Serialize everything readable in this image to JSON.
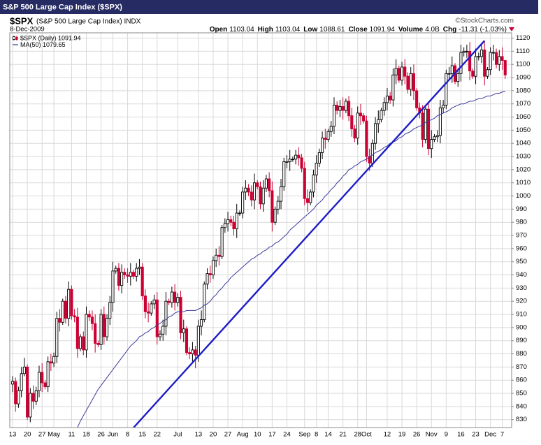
{
  "chart_data": {
    "type": "candlestick",
    "title": "S&P 500 Large Cap Index ($SPX)",
    "symbol": "$SPX",
    "subtitle": "(S&P 500 Large Cap Index) INDX",
    "date": "8-Dec-2009",
    "source": "©StockCharts.com",
    "quote": [
      {
        "label": "Open",
        "value": 1103.04
      },
      {
        "label": "High",
        "value": 1103.04
      },
      {
        "label": "Low",
        "value": 1088.61
      },
      {
        "label": "Close",
        "value": 1091.94
      },
      {
        "label": "Volume",
        "value": "4.0B"
      },
      {
        "label": "Chg",
        "value": "-11.31 (-1.03%)"
      }
    ],
    "categories": [
      "13",
      null,
      null,
      null,
      null,
      "20",
      null,
      null,
      null,
      null,
      "27",
      null,
      null,
      null,
      "May",
      null,
      null,
      null,
      null,
      null,
      "11",
      null,
      null,
      null,
      null,
      "18",
      null,
      null,
      null,
      null,
      "26",
      null,
      null,
      null,
      "Jun",
      null,
      null,
      null,
      null,
      "8",
      null,
      null,
      null,
      null,
      "15",
      null,
      null,
      null,
      null,
      "22",
      null,
      null,
      null,
      null,
      null,
      null,
      "Jul",
      null,
      null,
      null,
      null,
      null,
      null,
      "13",
      null,
      null,
      null,
      null,
      "20",
      null,
      null,
      null,
      null,
      "27",
      null,
      null,
      null,
      null,
      "Aug",
      null,
      null,
      null,
      null,
      "10",
      null,
      null,
      null,
      null,
      "17",
      null,
      null,
      null,
      null,
      "24",
      null,
      null,
      null,
      null,
      null,
      "Sep",
      null,
      null,
      null,
      "8",
      null,
      null,
      null,
      "14",
      null,
      null,
      null,
      null,
      "21",
      null,
      null,
      null,
      null,
      "28",
      null,
      null,
      "Oct",
      null,
      null,
      null,
      null,
      null,
      null,
      "12",
      null,
      null,
      null,
      null,
      "19",
      null,
      null,
      null,
      null,
      "26",
      null,
      null,
      null,
      null,
      "Nov",
      null,
      null,
      null,
      null,
      "9",
      null,
      null,
      null,
      null,
      "16",
      null,
      null,
      null,
      null,
      "23",
      null,
      null,
      null,
      null,
      "Dec",
      null,
      null,
      null,
      "7",
      null
    ],
    "series": [
      {
        "name": "$SPX (Daily) 1091.94",
        "up_color": "#000000",
        "down_color": "#cc0033",
        "open": [
          857,
          859,
          842,
          852,
          865,
          870,
          832,
          850,
          844,
          852,
          866,
          858,
          855,
          874,
          873,
          878,
          907,
          904,
          920,
          907,
          929,
          909,
          908,
          884,
          893,
          883,
          910,
          908,
          903,
          888,
          887,
          910,
          893,
          907,
          919,
          943,
          945,
          932,
          942,
          940,
          939,
          942,
          939,
          945,
          946,
          924,
          912,
          911,
          918,
          921,
          893,
          895,
          901,
          920,
          919,
          927,
          919,
          923,
          896,
          899,
          881,
          880,
          883,
          879,
          901,
          906,
          933,
          941,
          940,
          951,
          955,
          954,
          976,
          979,
          982,
          980,
          975,
          987,
          987,
          1003,
          1006,
          1003,
          997,
          1010,
          1007,
          994,
          1006,
          1013,
          1004,
          980,
          990,
          996,
          1007,
          1026,
          1026,
          1028,
          1028,
          1031,
          1029,
          1021,
          998,
          995,
          1003,
          1016,
          1025,
          1033,
          1044,
          1043,
          1049,
          1053,
          1069,
          1065,
          1068,
          1065,
          1072,
          1061,
          1051,
          1044,
          1063,
          1061,
          1057,
          1030,
          1025,
          1040,
          1055,
          1058,
          1065,
          1071,
          1076,
          1073,
          1092,
          1097,
          1088,
          1098,
          1091,
          1081,
          1093,
          1080,
          1067,
          1063,
          1043,
          1066,
          1036,
          1043,
          1045,
          1046,
          1067,
          1069,
          1093,
          1093,
          1099,
          1087,
          1093,
          1109,
          1110,
          1110,
          1095,
          1091,
          1106,
          1106,
          1111,
          1091,
          1096,
          1109,
          1109,
          1100,
          1106,
          1103
        ],
        "high": [
          863,
          862,
          855,
          870,
          877,
          872,
          854,
          856,
          855,
          871,
          873,
          860,
          878,
          880,
          881,
          912,
          914,
          922,
          924,
          935,
          932,
          914,
          915,
          895,
          897,
          916,
          913,
          913,
          910,
          890,
          914,
          916,
          910,
          924,
          950,
          947,
          949,
          948,
          945,
          945,
          949,
          944,
          949,
          952,
          949,
          929,
          919,
          920,
          925,
          927,
          898,
          906,
          927,
          922,
          931,
          933,
          926,
          928,
          906,
          901,
          885,
          889,
          886,
          906,
          913,
          935,
          945,
          947,
          954,
          960,
          962,
          978,
          983,
          988,
          985,
          985,
          994,
          989,
          1007,
          1012,
          1009,
          1008,
          1017,
          1012,
          1011,
          1012,
          1016,
          1018,
          1011,
          992,
          1000,
          1013,
          1029,
          1031,
          1035,
          1030,
          1035,
          1037,
          1032,
          1026,
          1005,
          1005,
          1020,
          1031,
          1036,
          1049,
          1051,
          1051,
          1057,
          1075,
          1072,
          1073,
          1075,
          1074,
          1076,
          1067,
          1054,
          1068,
          1070,
          1063,
          1061,
          1036,
          1043,
          1060,
          1065,
          1067,
          1075,
          1082,
          1079,
          1097,
          1104,
          1099,
          1102,
          1104,
          1094,
          1098,
          1100,
          1082,
          1071,
          1069,
          1069,
          1071,
          1050,
          1047,
          1050,
          1073,
          1073,
          1096,
          1098,
          1106,
          1101,
          1097,
          1115,
          1113,
          1115,
          1117,
          1097,
          1112,
          1109,
          1116,
          1118,
          1098,
          1113,
          1115,
          1112,
          1111,
          1113,
          1103
        ],
        "low": [
          851,
          836,
          839,
          847,
          863,
          830,
          828,
          838,
          841,
          847,
          851,
          853,
          851,
          867,
          870,
          873,
          897,
          902,
          903,
          901,
          906,
          904,
          877,
          882,
          879,
          877,
          905,
          898,
          881,
          885,
          883,
          887,
          890,
          902,
          912,
          941,
          928,
          926,
          937,
          934,
          932,
          937,
          935,
          940,
          921,
          907,
          904,
          909,
          914,
          887,
          890,
          890,
          894,
          917,
          915,
          913,
          916,
          891,
          889,
          879,
          876,
          874,
          869,
          874,
          894,
          904,
          929,
          934,
          937,
          946,
          947,
          952,
          972,
          973,
          977,
          970,
          968,
          985,
          983,
          997,
          1000,
          992,
          990,
          1005,
          990,
          988,
          1003,
          999,
          973,
          978,
          986,
          990,
          1004,
          1021,
          1019,
          1026,
          1024,
          1023,
          1018,
          993,
          988,
          993,
          999,
          1010,
          1022,
          1028,
          1036,
          1041,
          1045,
          1047,
          1062,
          1060,
          1058,
          1063,
          1057,
          1045,
          1041,
          1039,
          1054,
          1055,
          1026,
          1019,
          1022,
          1035,
          1048,
          1056,
          1061,
          1065,
          1070,
          1068,
          1085,
          1086,
          1084,
          1085,
          1078,
          1076,
          1073,
          1065,
          1059,
          1037,
          1040,
          1031,
          1029,
          1041,
          1041,
          1040,
          1063,
          1066,
          1088,
          1086,
          1085,
          1083,
          1087,
          1106,
          1105,
          1088,
          1089,
          1085,
          1103,
          1101,
          1084,
          1089,
          1092,
          1103,
          1097,
          1095,
          1096,
          1089
        ],
        "close": [
          859,
          842,
          852,
          865,
          870,
          832,
          850,
          844,
          852,
          866,
          858,
          855,
          874,
          873,
          878,
          907,
          904,
          920,
          907,
          929,
          909,
          908,
          884,
          893,
          883,
          910,
          908,
          903,
          888,
          887,
          910,
          893,
          907,
          919,
          943,
          945,
          932,
          942,
          940,
          939,
          942,
          939,
          945,
          946,
          924,
          912,
          911,
          918,
          921,
          893,
          895,
          901,
          920,
          919,
          927,
          919,
          923,
          896,
          899,
          881,
          880,
          883,
          879,
          901,
          906,
          933,
          941,
          940,
          951,
          955,
          954,
          976,
          979,
          982,
          980,
          975,
          987,
          987,
          1003,
          1006,
          1003,
          997,
          1010,
          1007,
          994,
          1006,
          1013,
          1004,
          980,
          990,
          996,
          1007,
          1026,
          1026,
          1028,
          1028,
          1031,
          1029,
          1021,
          998,
          995,
          1003,
          1016,
          1025,
          1033,
          1044,
          1043,
          1049,
          1053,
          1069,
          1065,
          1068,
          1065,
          1072,
          1061,
          1051,
          1044,
          1063,
          1061,
          1057,
          1030,
          1025,
          1040,
          1055,
          1058,
          1065,
          1071,
          1076,
          1073,
          1092,
          1097,
          1088,
          1098,
          1091,
          1081,
          1093,
          1080,
          1067,
          1063,
          1043,
          1066,
          1036,
          1043,
          1045,
          1046,
          1067,
          1069,
          1093,
          1093,
          1099,
          1087,
          1093,
          1109,
          1110,
          1110,
          1095,
          1091,
          1106,
          1106,
          1111,
          1091,
          1096,
          1109,
          1109,
          1100,
          1106,
          1103,
          1092
        ]
      },
      {
        "name": "MA(50) 1079.65",
        "type": "line",
        "color": "#3b3b9c",
        "values": [
          null,
          null,
          null,
          null,
          null,
          null,
          null,
          null,
          null,
          null,
          null,
          null,
          null,
          null,
          null,
          null,
          null,
          null,
          null,
          null,
          null,
          null,
          824,
          829,
          833,
          837,
          841,
          845,
          849,
          853,
          856,
          859,
          862,
          865,
          868,
          871,
          874,
          877,
          880,
          883,
          886,
          888,
          890,
          893,
          894,
          896,
          897,
          899,
          900,
          902,
          903,
          905,
          906,
          908,
          909,
          911,
          912,
          912,
          912,
          913,
          913,
          913,
          913,
          914,
          915,
          917,
          918,
          920,
          923,
          925,
          928,
          930,
          933,
          935,
          938,
          940,
          942,
          944,
          946,
          948,
          950,
          952,
          953,
          955,
          956,
          958,
          959,
          961,
          962,
          964,
          965,
          967,
          969,
          971,
          974,
          976,
          978,
          980,
          982,
          984,
          986,
          988,
          990,
          993,
          995,
          997,
          1000,
          1002,
          1005,
          1007,
          1010,
          1012,
          1015,
          1017,
          1020,
          1021,
          1023,
          1024,
          1026,
          1027,
          1028,
          1030,
          1031,
          1033,
          1034,
          1035,
          1037,
          1038,
          1040,
          1041,
          1042,
          1044,
          1045,
          1047,
          1048,
          1049,
          1051,
          1052,
          1053,
          1054,
          1056,
          1057,
          1058,
          1059,
          1061,
          1062,
          1063,
          1064,
          1065,
          1067,
          1068,
          1069,
          1070,
          1070,
          1071,
          1072,
          1072,
          1073,
          1074,
          1074,
          1075,
          1076,
          1076,
          1077,
          1078,
          1078,
          1079,
          1079.65
        ]
      }
    ],
    "trend_line": {
      "color": "#1c1cc8",
      "start": [
        37,
        814
      ],
      "end": [
        160,
        1118
      ]
    },
    "ylim": [
      824,
      1124
    ],
    "yticks": [
      830,
      840,
      850,
      860,
      870,
      880,
      890,
      900,
      910,
      920,
      930,
      940,
      950,
      960,
      970,
      980,
      990,
      1000,
      1010,
      1020,
      1030,
      1040,
      1050,
      1060,
      1070,
      1080,
      1090,
      1100,
      1110,
      1120
    ],
    "grid": true,
    "y_axis_side": "right"
  }
}
